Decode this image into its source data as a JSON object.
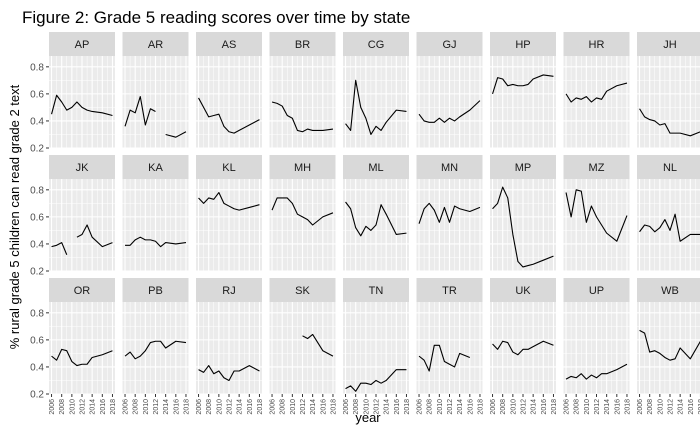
{
  "figure": {
    "title": "Figure 2: Grade 5 reading scores over time by state",
    "xlabel": "year",
    "ylabel": "% rural grade 5 children can read grade 2 text"
  },
  "colors": {
    "panel_bg": "#ebebeb",
    "strip_bg": "#d9d9d9",
    "grid_major": "#ffffff",
    "line": "#000000"
  },
  "chart_data": {
    "type": "line",
    "facet": "state",
    "layout": "wrap 9 columns x 3 rows",
    "title": "Figure 2: Grade 5 reading scores over time by state",
    "xlabel": "year",
    "ylabel": "% rural grade 5 children can read grade 2 text",
    "xlim": [
      2005.5,
      2018.5
    ],
    "ylim": [
      0.2,
      0.88
    ],
    "x_ticks": [
      2006,
      2008,
      2010,
      2012,
      2014,
      2016,
      2018
    ],
    "x_tick_labels": [
      "2006",
      "2008",
      "2010",
      "2012",
      "2014",
      "2016",
      "2018"
    ],
    "y_ticks": [
      0.2,
      0.4,
      0.6,
      0.8
    ],
    "y_tick_labels": [
      "0.2",
      "0.4",
      "0.6",
      "0.8"
    ],
    "x": [
      2006,
      2007,
      2008,
      2009,
      2010,
      2011,
      2012,
      2013,
      2014,
      2016,
      2018
    ],
    "panels": [
      {
        "state": "AP",
        "values": [
          0.45,
          0.59,
          0.54,
          0.48,
          0.5,
          0.54,
          0.5,
          0.48,
          0.47,
          0.46,
          0.44
        ]
      },
      {
        "state": "AR",
        "values": [
          0.36,
          0.48,
          0.46,
          0.58,
          0.37,
          0.49,
          0.47,
          null,
          0.3,
          0.28,
          0.32
        ]
      },
      {
        "state": "AS",
        "values": [
          0.57,
          0.5,
          0.43,
          0.44,
          0.45,
          0.36,
          0.32,
          0.31,
          0.33,
          0.37,
          0.41
        ]
      },
      {
        "state": "BR",
        "values": [
          0.54,
          0.53,
          0.51,
          0.44,
          0.42,
          0.33,
          0.32,
          0.34,
          0.33,
          0.33,
          0.34
        ]
      },
      {
        "state": "CG",
        "values": [
          0.38,
          0.33,
          0.7,
          0.5,
          0.42,
          0.3,
          0.36,
          0.33,
          0.39,
          0.48,
          0.47
        ]
      },
      {
        "state": "GJ",
        "values": [
          0.45,
          0.4,
          0.39,
          0.39,
          0.42,
          0.39,
          0.42,
          0.4,
          0.43,
          0.48,
          0.55
        ]
      },
      {
        "state": "HP",
        "values": [
          0.6,
          0.72,
          0.71,
          0.66,
          0.67,
          0.66,
          0.66,
          0.67,
          0.71,
          0.74,
          0.73
        ]
      },
      {
        "state": "HR",
        "values": [
          0.6,
          0.54,
          0.57,
          0.56,
          0.58,
          0.54,
          0.57,
          0.56,
          0.62,
          0.66,
          0.68
        ]
      },
      {
        "state": "JH",
        "values": [
          0.49,
          0.43,
          0.41,
          0.4,
          0.37,
          0.38,
          0.31,
          0.31,
          0.31,
          0.29,
          0.32
        ]
      },
      {
        "state": "JK",
        "values": [
          0.38,
          0.39,
          0.41,
          0.32,
          null,
          0.45,
          0.47,
          0.54,
          0.45,
          0.38,
          0.41
        ]
      },
      {
        "state": "KA",
        "values": [
          0.39,
          0.39,
          0.43,
          0.45,
          0.43,
          0.43,
          0.42,
          0.38,
          0.41,
          0.4,
          0.41
        ]
      },
      {
        "state": "KL",
        "values": [
          0.74,
          0.7,
          0.74,
          0.73,
          0.78,
          0.7,
          0.68,
          0.66,
          0.65,
          0.67,
          0.69
        ]
      },
      {
        "state": "MH",
        "values": [
          0.65,
          0.74,
          0.74,
          0.74,
          0.7,
          0.62,
          0.6,
          0.58,
          0.54,
          0.6,
          0.63
        ]
      },
      {
        "state": "ML",
        "values": [
          0.71,
          0.66,
          0.52,
          0.46,
          0.53,
          0.5,
          0.54,
          0.69,
          0.62,
          0.47,
          0.48
        ]
      },
      {
        "state": "MN",
        "values": [
          0.55,
          0.66,
          0.7,
          0.65,
          0.56,
          0.67,
          0.56,
          0.68,
          0.66,
          0.64,
          0.67
        ]
      },
      {
        "state": "MP",
        "values": [
          0.66,
          0.7,
          0.82,
          0.74,
          0.47,
          0.27,
          0.23,
          0.24,
          0.25,
          0.28,
          0.31
        ]
      },
      {
        "state": "MZ",
        "values": [
          0.78,
          0.6,
          0.8,
          0.79,
          0.56,
          0.68,
          0.6,
          0.54,
          0.48,
          0.42,
          0.61
        ]
      },
      {
        "state": "NL",
        "values": [
          0.49,
          0.54,
          0.53,
          0.49,
          0.52,
          0.58,
          0.5,
          0.62,
          0.42,
          0.47,
          0.47
        ]
      },
      {
        "state": "OR",
        "values": [
          0.48,
          0.45,
          0.53,
          0.52,
          0.44,
          0.41,
          0.42,
          0.42,
          0.47,
          0.49,
          0.52
        ]
      },
      {
        "state": "PB",
        "values": [
          0.48,
          0.51,
          0.46,
          0.48,
          0.52,
          0.58,
          0.59,
          0.59,
          0.54,
          0.59,
          0.58
        ]
      },
      {
        "state": "RJ",
        "values": [
          0.38,
          0.36,
          0.41,
          0.35,
          0.37,
          0.32,
          0.3,
          0.37,
          0.37,
          0.41,
          0.37
        ]
      },
      {
        "state": "SK",
        "values": [
          null,
          null,
          null,
          null,
          null,
          null,
          0.63,
          0.61,
          0.64,
          0.52,
          0.48
        ]
      },
      {
        "state": "TN",
        "values": [
          0.24,
          0.26,
          0.22,
          0.28,
          0.28,
          0.27,
          0.3,
          0.28,
          0.3,
          0.38,
          0.38
        ]
      },
      {
        "state": "TR",
        "values": [
          0.48,
          0.45,
          0.37,
          0.56,
          0.56,
          0.44,
          0.42,
          0.4,
          0.5,
          0.47,
          null
        ]
      },
      {
        "state": "UK",
        "values": [
          0.57,
          0.53,
          0.59,
          0.58,
          0.51,
          0.49,
          0.53,
          0.53,
          0.55,
          0.59,
          0.56
        ]
      },
      {
        "state": "UP",
        "values": [
          0.31,
          0.33,
          0.32,
          0.35,
          0.31,
          0.34,
          0.32,
          0.35,
          0.35,
          0.38,
          0.42
        ]
      },
      {
        "state": "WB",
        "values": [
          0.67,
          0.65,
          0.51,
          0.52,
          0.5,
          0.47,
          0.45,
          0.46,
          0.54,
          0.46,
          0.59
        ]
      }
    ]
  }
}
